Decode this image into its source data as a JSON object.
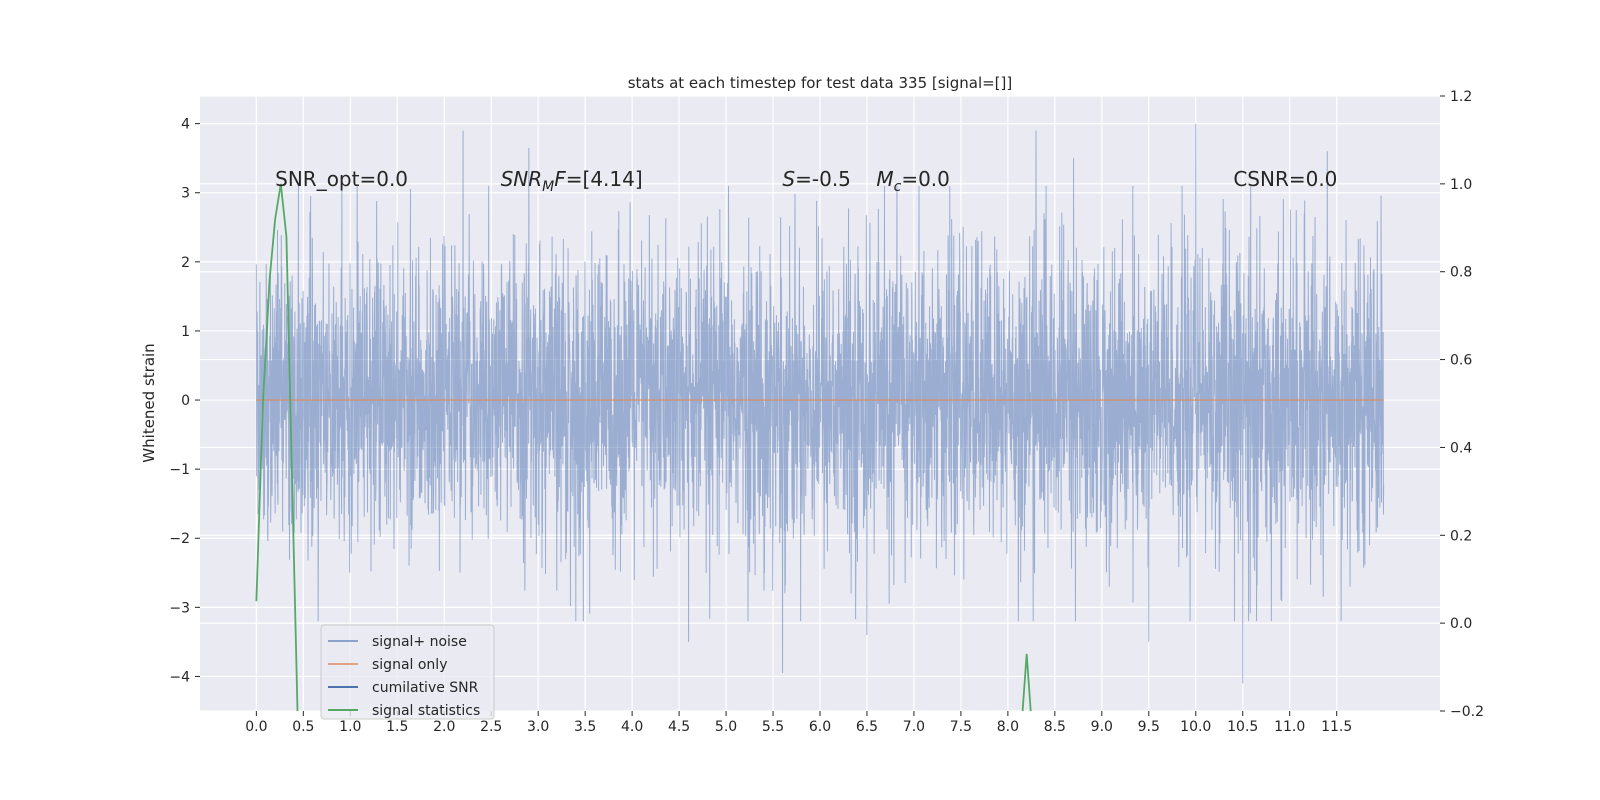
{
  "chart_data": {
    "type": "line",
    "title": "stats at each timestep for test data 335 [signal=[]]",
    "ylabel": "Whitened strain",
    "xlim": [
      -0.6,
      12.6
    ],
    "ylim": [
      -4.5,
      4.4
    ],
    "y2lim": [
      -0.2,
      1.2
    ],
    "x_ticks": [
      0.0,
      0.5,
      1.0,
      1.5,
      2.0,
      2.5,
      3.0,
      3.5,
      4.0,
      4.5,
      5.0,
      5.5,
      6.0,
      6.5,
      7.0,
      7.5,
      8.0,
      8.5,
      9.0,
      9.5,
      10.0,
      10.5,
      11.0,
      11.5
    ],
    "x_tick_labels": [
      "0.0",
      "0.5",
      "1.0",
      "1.5",
      "2.0",
      "2.5",
      "3.0",
      "3.5",
      "4.0",
      "4.5",
      "5.0",
      "5.5",
      "6.0",
      "6.5",
      "7.0",
      "7.5",
      "8.0",
      "8.5",
      "9.0",
      "9.5",
      "10.0",
      "10.5",
      "11.0",
      "11.5"
    ],
    "y_ticks": [
      -4,
      -3,
      -2,
      -1,
      0,
      1,
      2,
      3,
      4
    ],
    "y_tick_labels": [
      "−4",
      "−3",
      "−2",
      "−1",
      "0",
      "1",
      "2",
      "3",
      "4"
    ],
    "y2_ticks": [
      -0.2,
      0.0,
      0.2,
      0.4,
      0.6,
      0.8,
      1.0,
      1.2
    ],
    "y2_tick_labels": [
      "−0.2",
      "0.0",
      "0.2",
      "0.4",
      "0.6",
      "0.8",
      "1.0",
      "1.2"
    ],
    "grid": true,
    "legend_position": "lower-left",
    "colors": {
      "background": "#eaeaf2",
      "noise": "#4c72b0",
      "signal": "#dd8452",
      "cumulative": "#4c72b0",
      "statistics": "#55a868"
    },
    "series": [
      {
        "name": "signal+ noise",
        "axis": "left",
        "x_range": [
          0.0,
          12.0
        ],
        "envelope_typical": [
          -1.7,
          1.7
        ],
        "envelope_peak": [
          -4.1,
          4.0
        ],
        "notable_peaks": [
          {
            "x": 2.2,
            "y": 3.9
          },
          {
            "x": 2.9,
            "y": 3.65
          },
          {
            "x": 8.3,
            "y": 3.9
          },
          {
            "x": 8.7,
            "y": 3.5
          },
          {
            "x": 10.0,
            "y": 4.0
          },
          {
            "x": 11.4,
            "y": 3.6
          },
          {
            "x": 5.6,
            "y": -3.95
          },
          {
            "x": 10.5,
            "y": -4.1
          },
          {
            "x": 4.6,
            "y": -3.5
          },
          {
            "x": 9.5,
            "y": -3.5
          },
          {
            "x": 6.5,
            "y": -3.4
          }
        ]
      },
      {
        "name": "signal only",
        "axis": "left",
        "x": [
          0.0,
          12.0
        ],
        "y": [
          0.0,
          0.0
        ]
      },
      {
        "name": "cumilative SNR",
        "axis": "left",
        "x": [],
        "y": []
      },
      {
        "name": "signal statistics",
        "axis": "right",
        "x": [
          0.0,
          0.07,
          0.14,
          0.2,
          0.26,
          0.32,
          0.44,
          8.2,
          8.2
        ],
        "y": [
          0.05,
          0.5,
          0.78,
          0.92,
          1.0,
          0.88,
          -0.22,
          -0.22,
          -0.2
        ],
        "spike": {
          "x": [
            8.15,
            8.2,
            8.25
          ],
          "y": [
            -0.22,
            -0.07,
            -0.22
          ]
        }
      }
    ],
    "annotations": [
      {
        "x": 0.2,
        "y": 3.1,
        "text": "SNR_opt=0.0",
        "kind": "plain"
      },
      {
        "x": 2.6,
        "y": 3.1,
        "main": "SNR",
        "sub": "M",
        "rest": "F=[4.14]",
        "kind": "sub_italic"
      },
      {
        "x": 5.6,
        "y": 3.1,
        "main": "S",
        "rest": "=-0.5",
        "kind": "italic_first"
      },
      {
        "x": 6.6,
        "y": 3.1,
        "main": "M",
        "sub": "c",
        "rest": "=0.0",
        "kind": "sub_italic"
      },
      {
        "x": 10.4,
        "y": 3.1,
        "text": "CSNR=0.0",
        "kind": "plain"
      }
    ]
  }
}
